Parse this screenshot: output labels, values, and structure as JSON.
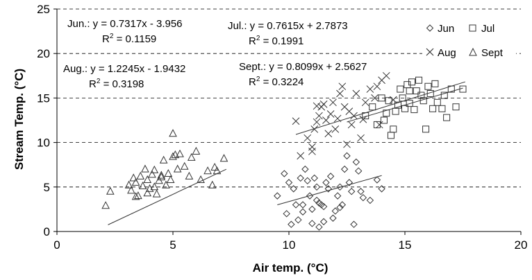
{
  "chart_data": {
    "type": "scatter",
    "xlabel": "Air temp. (°C)",
    "ylabel": "Stream Temp. (°C)",
    "xlim": [
      0,
      20
    ],
    "ylim": [
      0,
      25
    ],
    "xticks": [
      "0",
      "5",
      "10",
      "15",
      "20"
    ],
    "yticks": [
      "0",
      "5",
      "10",
      "15",
      "20",
      "25"
    ],
    "grid": "horizontal dashed",
    "legend_position": "top-right",
    "series": [
      {
        "name": "Jun",
        "marker": "diamond",
        "slope": 0.7317,
        "intercept": -3.956,
        "fit_range": [
          9.5,
          14
        ],
        "equation": "Jun.: y = 0.7317x - 3.956",
        "r2_label": "R",
        "r2_value": " = 0.1159",
        "points": [
          [
            9.5,
            4
          ],
          [
            9.8,
            6.5
          ],
          [
            10,
            5.5
          ],
          [
            10.2,
            4.8
          ],
          [
            10.3,
            3
          ],
          [
            10.5,
            6
          ],
          [
            10.6,
            3
          ],
          [
            10.7,
            7
          ],
          [
            10.8,
            5.7
          ],
          [
            10.9,
            4
          ],
          [
            11,
            2.5
          ],
          [
            11.1,
            6
          ],
          [
            11.2,
            3.5
          ],
          [
            11.3,
            3.2
          ],
          [
            11.4,
            3
          ],
          [
            11.5,
            2.8
          ],
          [
            11.2,
            5
          ],
          [
            11.6,
            5.5
          ],
          [
            11.7,
            4.8
          ],
          [
            11.8,
            6.2
          ],
          [
            11.9,
            1.5
          ],
          [
            12,
            2.3
          ],
          [
            12.1,
            4
          ],
          [
            12.2,
            5
          ],
          [
            12.3,
            3
          ],
          [
            12.4,
            7
          ],
          [
            12.5,
            8.5
          ],
          [
            12.6,
            5.5
          ],
          [
            12.7,
            4.5
          ],
          [
            12.9,
            7.8
          ],
          [
            13.1,
            4.5
          ],
          [
            13.2,
            3.8
          ],
          [
            13.5,
            3.5
          ],
          [
            13.8,
            5.8
          ],
          [
            10.1,
            0.8
          ],
          [
            10.4,
            1.3
          ],
          [
            11,
            0.9
          ],
          [
            11.3,
            0.5
          ],
          [
            12.8,
            0.8
          ],
          [
            9.9,
            2
          ],
          [
            10.6,
            2.2
          ],
          [
            11.5,
            1.1
          ],
          [
            12.2,
            2.7
          ],
          [
            13,
            6.8
          ],
          [
            14,
            4.8
          ]
        ]
      },
      {
        "name": "Jul",
        "marker": "square",
        "slope": 0.7615,
        "intercept": 2.7873,
        "fit_range": [
          12.5,
          17.5
        ],
        "equation": "Jul.: y = 0.7615x + 2.7873",
        "r2_label": "R",
        "r2_value": " = 0.1991",
        "points": [
          [
            13.3,
            13
          ],
          [
            13.6,
            14
          ],
          [
            13.8,
            12
          ],
          [
            14,
            15
          ],
          [
            14.1,
            12.5
          ],
          [
            14.2,
            13.3
          ],
          [
            14.3,
            14.7
          ],
          [
            14.4,
            10.8
          ],
          [
            14.5,
            11.5
          ],
          [
            14.6,
            13.5
          ],
          [
            14.7,
            14.2
          ],
          [
            14.8,
            16
          ],
          [
            14.9,
            15
          ],
          [
            15,
            13.8
          ],
          [
            15.1,
            16.5
          ],
          [
            15.2,
            14.4
          ],
          [
            15.3,
            16.8
          ],
          [
            15.4,
            13.7
          ],
          [
            15.5,
            15.8
          ],
          [
            15.6,
            17
          ],
          [
            15.7,
            15.3
          ],
          [
            15.8,
            14.7
          ],
          [
            15.9,
            11.5
          ],
          [
            16,
            16.3
          ],
          [
            16.1,
            15.5
          ],
          [
            16.2,
            13.8
          ],
          [
            16.3,
            16.6
          ],
          [
            16.4,
            14.5
          ],
          [
            16.6,
            13.8
          ],
          [
            16.8,
            12.8
          ],
          [
            17,
            16
          ],
          [
            17.2,
            14
          ],
          [
            17.5,
            16
          ],
          [
            15.2,
            15.8
          ],
          [
            16.7,
            15.3
          ]
        ]
      },
      {
        "name": "Aug",
        "marker": "x",
        "slope": 1.2245,
        "intercept": -1.9432,
        "fit_range": [
          2.2,
          7.3
        ],
        "equation": "Aug.: y = 1.2245x - 1.9432",
        "r2_label": "R",
        "r2_value": " = 0.3198",
        "points": [
          [
            10.3,
            12.4
          ],
          [
            10.8,
            10.5
          ],
          [
            11,
            9.5
          ],
          [
            11.1,
            11.5
          ],
          [
            11.2,
            12.3
          ],
          [
            11.3,
            13
          ],
          [
            11.5,
            14.3
          ],
          [
            11.6,
            12.5
          ],
          [
            11.8,
            13.2
          ],
          [
            11.9,
            14.5
          ],
          [
            12,
            11.5
          ],
          [
            12.1,
            12.7
          ],
          [
            12.2,
            15.5
          ],
          [
            12.3,
            16.3
          ],
          [
            12.4,
            14
          ],
          [
            12.6,
            13.5
          ],
          [
            12.7,
            12
          ],
          [
            12.9,
            15.5
          ],
          [
            13.1,
            10.5
          ],
          [
            13.3,
            14.5
          ],
          [
            13.5,
            16
          ],
          [
            13.7,
            15
          ],
          [
            14,
            17
          ],
          [
            14.2,
            17.5
          ],
          [
            11.4,
            14
          ],
          [
            12.5,
            9.8
          ],
          [
            13.2,
            12.6
          ],
          [
            11.7,
            11
          ],
          [
            11,
            9
          ],
          [
            10.5,
            8.5
          ],
          [
            14.5,
            14.8
          ],
          [
            13.8,
            16.3
          ],
          [
            12.8,
            13
          ],
          [
            11.2,
            14.1
          ],
          [
            13.9,
            12
          ]
        ]
      },
      {
        "name": "Sept",
        "marker": "triangle",
        "slope": 0.8099,
        "intercept": 2.5627,
        "fit_range": [
          10.3,
          17.6
        ],
        "equation": "Sept.: y = 0.8099x + 2.5627",
        "r2_label": "R",
        "r2_value": " = 0.3224",
        "points": [
          [
            2.1,
            2.9
          ],
          [
            2.3,
            4.5
          ],
          [
            3.1,
            5.2
          ],
          [
            3.2,
            4.6
          ],
          [
            3.3,
            6
          ],
          [
            3.4,
            5.5
          ],
          [
            3.5,
            4
          ],
          [
            3.6,
            6.2
          ],
          [
            3.7,
            5.1
          ],
          [
            3.8,
            7
          ],
          [
            3.9,
            5.8
          ],
          [
            4,
            4.8
          ],
          [
            4.1,
            6.4
          ],
          [
            4.2,
            5
          ],
          [
            4.3,
            4.2
          ],
          [
            4.4,
            5.7
          ],
          [
            4.5,
            6.1
          ],
          [
            4.6,
            8
          ],
          [
            4.7,
            5.2
          ],
          [
            4.8,
            6.5
          ],
          [
            4.9,
            5.8
          ],
          [
            5,
            11
          ],
          [
            5.1,
            8.6
          ],
          [
            5.2,
            7
          ],
          [
            5.3,
            8.7
          ],
          [
            5.5,
            7.3
          ],
          [
            5.7,
            6.2
          ],
          [
            5.8,
            8.3
          ],
          [
            6,
            9
          ],
          [
            6.2,
            5.8
          ],
          [
            6.5,
            6.8
          ],
          [
            6.7,
            5.2
          ],
          [
            6.8,
            7.2
          ],
          [
            7.2,
            8.2
          ],
          [
            3.4,
            3.9
          ],
          [
            3.9,
            4.3
          ],
          [
            4.2,
            6.9
          ],
          [
            5,
            8.4
          ],
          [
            6.9,
            6.8
          ],
          [
            4.5,
            6.3
          ]
        ]
      }
    ]
  }
}
